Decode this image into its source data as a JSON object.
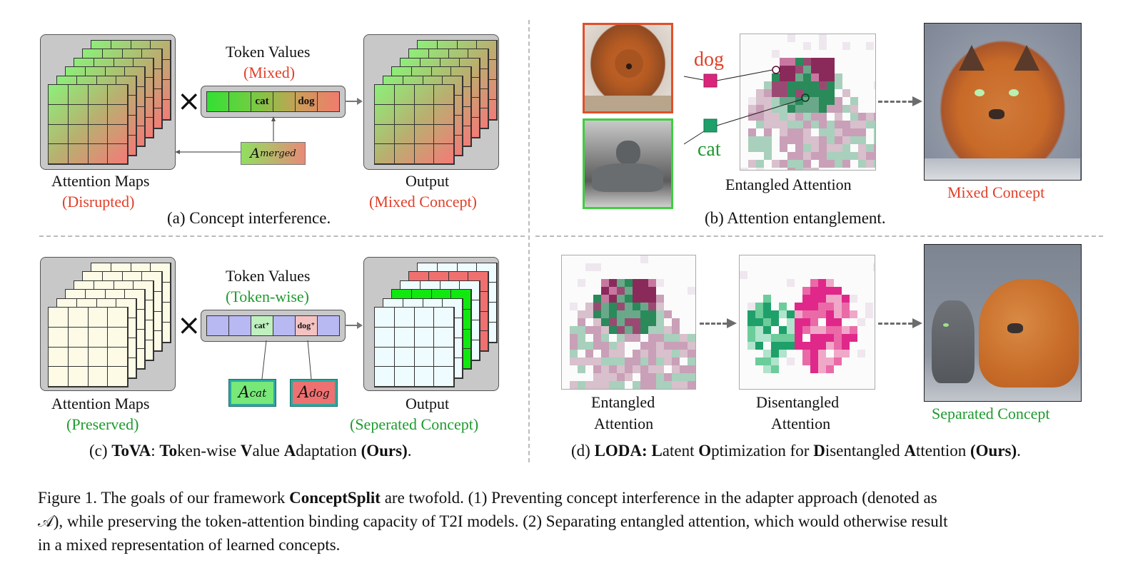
{
  "panel_a": {
    "token_values_title": "Token Values",
    "token_values_state": "(Mixed)",
    "tokens": [
      "",
      "",
      "cat",
      "",
      "dog",
      ""
    ],
    "multiply_symbol": "×",
    "adapter_label": "A",
    "adapter_subscript": "merged",
    "attention_title": "Attention Maps",
    "attention_state": "(Disrupted)",
    "output_title": "Output",
    "output_state": "(Mixed Concept)",
    "caption": "(a) Concept  interference."
  },
  "panel_b": {
    "dog_label": "dog",
    "cat_label": "cat",
    "attention_label": "Entangled  Attention",
    "result_label": "Mixed Concept",
    "caption": "(b) Attention entanglement.",
    "colors": {
      "dog": "#d9267a",
      "cat": "#1fa06a"
    }
  },
  "panel_c": {
    "token_values_title": "Token Values",
    "token_values_state": "(Token-wise)",
    "tokens": [
      "",
      "",
      "cat⁺",
      "",
      "dog⁺",
      ""
    ],
    "multiply_symbol": "×",
    "adapter_cat": {
      "label": "A",
      "subscript": "cat"
    },
    "adapter_dog": {
      "label": "A",
      "subscript": "dog"
    },
    "attention_title": "Attention Maps",
    "attention_state": "(Preserved)",
    "output_title": "Output",
    "output_state": "(Seperated  Concept)",
    "caption_prefix": "(c)  ",
    "caption_parts": [
      {
        "t": "ToVA",
        "b": true
      },
      {
        "t": ": ",
        "b": false
      },
      {
        "t": "To",
        "b": true
      },
      {
        "t": "ken-wise ",
        "b": false
      },
      {
        "t": "V",
        "b": true
      },
      {
        "t": "alue ",
        "b": false
      },
      {
        "t": "A",
        "b": true
      },
      {
        "t": "daptation ",
        "b": false
      },
      {
        "t": "(Ours)",
        "b": true
      },
      {
        "t": ".",
        "b": false
      }
    ]
  },
  "panel_d": {
    "entangled_label_1": "Entangled",
    "entangled_label_2": "Attention",
    "disentangled_label_1": "Disentangled",
    "disentangled_label_2": "Attention",
    "result_label": "Separated Concept",
    "caption_prefix": "(d)  ",
    "caption_parts": [
      {
        "t": "LODA: ",
        "b": true
      },
      {
        "t": "L",
        "b": true
      },
      {
        "t": "atent ",
        "b": false
      },
      {
        "t": "O",
        "b": true
      },
      {
        "t": "ptimization for ",
        "b": false
      },
      {
        "t": "D",
        "b": true
      },
      {
        "t": "isentangled ",
        "b": false
      },
      {
        "t": "A",
        "b": true
      },
      {
        "t": "ttention ",
        "b": false
      },
      {
        "t": "(Ours)",
        "b": true
      },
      {
        "t": ".",
        "b": false
      }
    ]
  },
  "figure_caption": {
    "line1_pre": "Figure 1. The goals of our framework ",
    "line1_bold": "ConceptSplit",
    "line1_post": " are twofold. (1) Preventing concept interference in the adapter approach (denoted as",
    "line2": "𝒜), while preserving the token-attention binding capacity of T2I models. (2) Separating entangled attention, which would otherwise result",
    "line3": "in a mixed representation of learned concepts."
  },
  "images": {
    "dog_photo": "chow-chow dog photo",
    "cat_photo": "gray cat photo",
    "mixed_output": "generated mixed cat-dog image",
    "separated_output": "generated cat and dog image"
  }
}
